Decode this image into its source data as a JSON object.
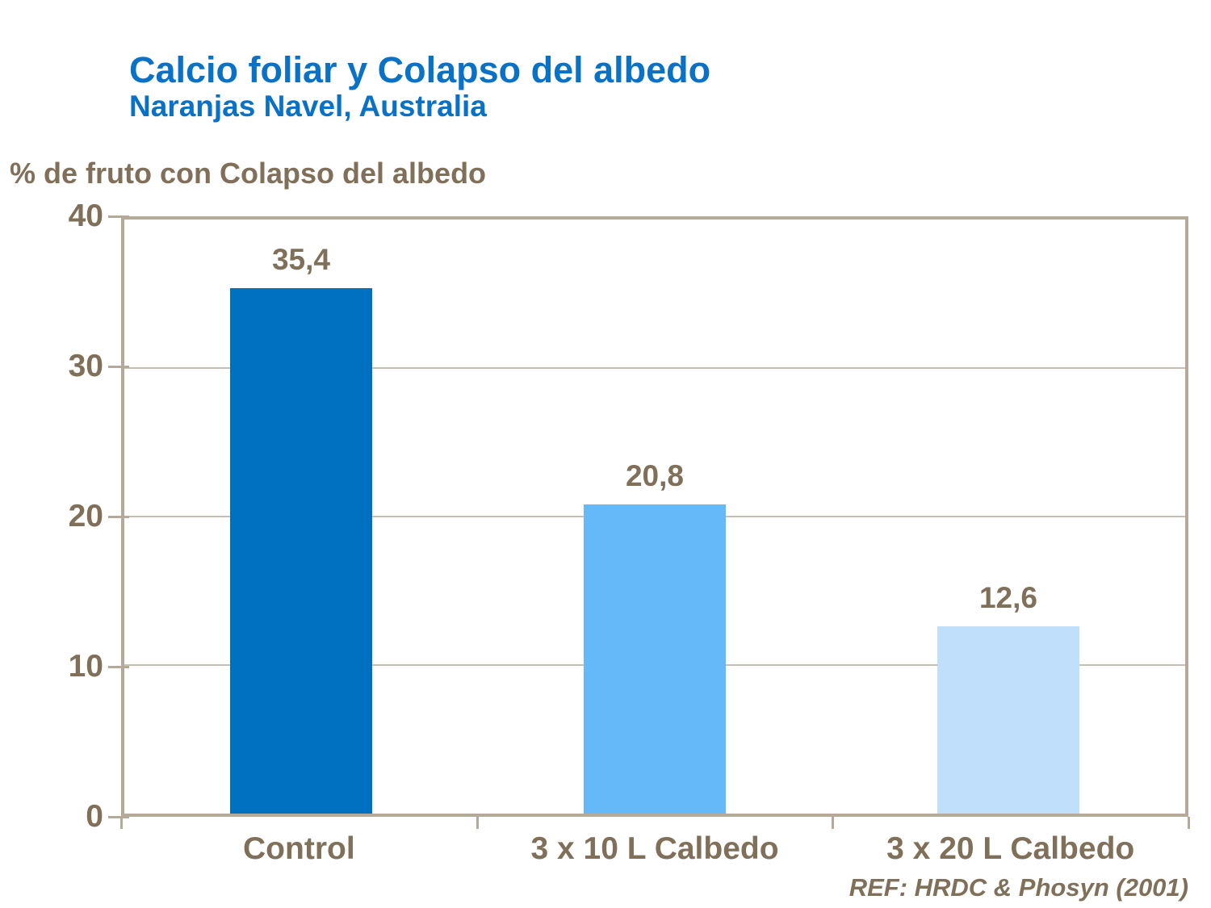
{
  "header": {
    "title": "Calcio foliar y Colapso del albedo",
    "subtitle": "Naranjas Navel, Australia"
  },
  "axis_title": "% de fruto con Colapso del albedo",
  "footer": {
    "reference": "REF: HRDC & Phosyn (2001)"
  },
  "colors": {
    "title_blue": "#0971C6",
    "text_brown": "#80705A",
    "axis_frame": "#B5AA9A",
    "gridline": "#C9C0B2",
    "bar_colors": [
      "#0070C0",
      "#66B9F8",
      "#BFDFFB"
    ]
  },
  "chart_data": {
    "type": "bar",
    "title": "Calcio foliar y Colapso del albedo",
    "subtitle": "Naranjas Navel, Australia",
    "ylabel": "% de fruto con Colapso del albedo",
    "categories": [
      "Control",
      "3 x 10 L Calbedo",
      "3 x 20 L Calbedo"
    ],
    "values": [
      35.4,
      20.8,
      12.6
    ],
    "data_labels": [
      "35,4",
      "20,8",
      "12,6"
    ],
    "series_colors": [
      "#0070C0",
      "#66B9F8",
      "#BFDFFB"
    ],
    "ylim": [
      0,
      40
    ],
    "yticks": [
      0,
      10,
      20,
      30,
      40
    ],
    "grid": "horizontal-at-10-20-30",
    "legend": "none",
    "annotation": "REF: HRDC & Phosyn (2001)"
  }
}
